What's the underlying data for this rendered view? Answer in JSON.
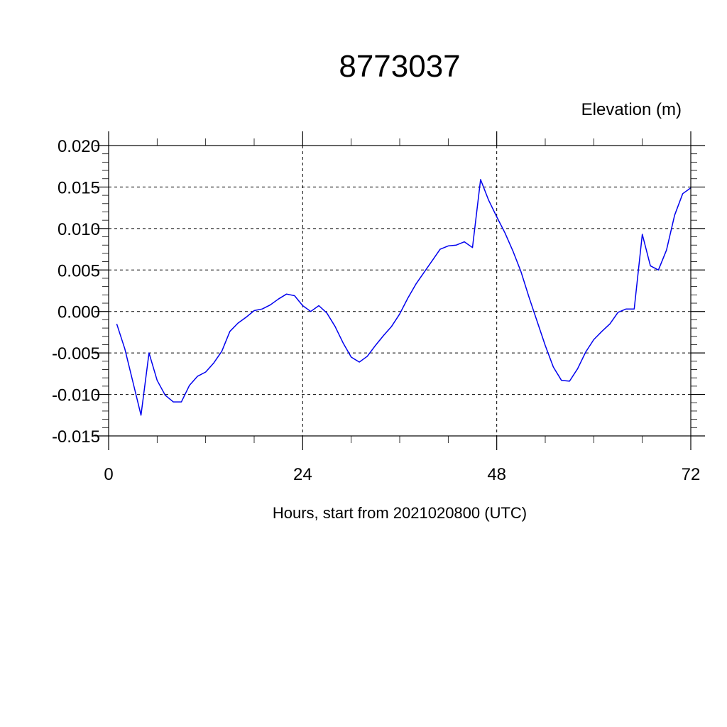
{
  "chart_data": {
    "type": "line",
    "title": "8773037",
    "subtitle": "Elevation (m)",
    "xlabel": "Hours, start from 2021020800 (UTC)",
    "ylabel": "",
    "xlim": [
      0,
      72
    ],
    "ylim": [
      -0.015,
      0.02
    ],
    "x_ticks": [
      0,
      24,
      48,
      72
    ],
    "x_tick_labels": [
      "0",
      "24",
      "48",
      "72"
    ],
    "y_ticks": [
      -0.015,
      -0.01,
      -0.005,
      0,
      0.005,
      0.01,
      0.015,
      0.02
    ],
    "y_tick_labels": [
      "-0.015",
      "-0.010",
      "-0.005",
      "0.000",
      "0.005",
      "0.010",
      "0.015",
      "0.020"
    ],
    "grid": true,
    "series": [
      {
        "color": "#0000ee",
        "x": [
          1,
          2,
          3,
          4,
          5,
          6,
          7,
          8,
          9,
          10,
          11,
          12,
          13,
          14,
          15,
          16,
          17,
          18,
          19,
          20,
          21,
          22,
          23,
          24,
          25,
          26,
          27,
          28,
          29,
          30,
          31,
          32,
          33,
          34,
          35,
          36,
          37,
          38,
          39,
          40,
          41,
          42,
          43,
          44,
          45,
          46,
          47,
          48,
          49,
          50,
          51,
          52,
          53,
          54,
          55,
          56,
          57,
          58,
          59,
          60,
          61,
          62,
          63,
          64,
          65,
          66,
          67,
          68,
          69,
          70,
          71,
          72
        ],
        "y": [
          -0.0015,
          -0.0045,
          -0.0085,
          -0.0125,
          -0.005,
          -0.0083,
          -0.0101,
          -0.0109,
          -0.0109,
          -0.0089,
          -0.0078,
          -0.0073,
          -0.0062,
          -0.0048,
          -0.0024,
          -0.0014,
          -0.0007,
          0.0001,
          0.0003,
          0.0008,
          0.0015,
          0.0021,
          0.0019,
          0.0007,
          0.0,
          0.0007,
          -0.0002,
          -0.0018,
          -0.0038,
          -0.0055,
          -0.0061,
          -0.0054,
          -0.0041,
          -0.0029,
          -0.0018,
          -0.0003,
          0.0016,
          0.0033,
          0.0047,
          0.0061,
          0.0075,
          0.0079,
          0.008,
          0.0084,
          0.0077,
          0.0159,
          0.0134,
          0.0114,
          0.0095,
          0.0073,
          0.0048,
          0.0017,
          -0.0012,
          -0.0041,
          -0.0067,
          -0.0083,
          -0.0084,
          -0.0069,
          -0.0049,
          -0.0034,
          -0.0024,
          -0.0015,
          -0.0001,
          0.0003,
          0.0003,
          0.0093,
          0.0055,
          0.005,
          0.0074,
          0.0116,
          0.0142,
          0.0149
        ]
      }
    ]
  }
}
